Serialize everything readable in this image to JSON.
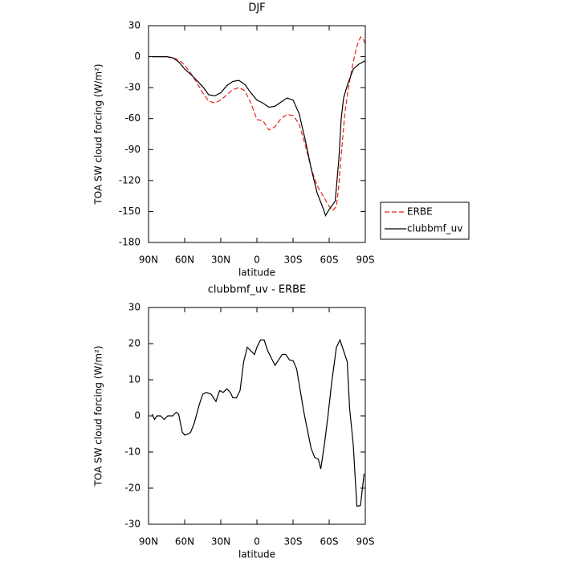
{
  "chart_data": [
    {
      "type": "line",
      "title": "DJF",
      "xlabel": "latitude",
      "ylabel": "TOA SW cloud forcing (W/m²)",
      "xlim": [
        90,
        -90
      ],
      "xticks": [
        {
          "value": 90,
          "label": "90N"
        },
        {
          "value": 60,
          "label": "60N"
        },
        {
          "value": 30,
          "label": "30N"
        },
        0,
        {
          "value": -30,
          "label": "30S"
        },
        {
          "value": -60,
          "label": "60S"
        },
        {
          "value": -90,
          "label": "90S"
        }
      ],
      "ylim": [
        -180,
        30
      ],
      "yticks": [
        30,
        0,
        -30,
        -60,
        -90,
        -120,
        -150,
        -180
      ],
      "legend": "outside-right",
      "series": [
        {
          "name": "ERBE",
          "color": "#e8201c",
          "linestyle": "dashed",
          "x": [
            87,
            80,
            75,
            70,
            65,
            60,
            55,
            50,
            45,
            40,
            35,
            30,
            25,
            20,
            15,
            10,
            5,
            0,
            -5,
            -10,
            -15,
            -20,
            -25,
            -30,
            -35,
            -40,
            -45,
            -50,
            -55,
            -60,
            -63,
            -66,
            -68,
            -70,
            -73,
            -76,
            -80,
            -83,
            -86,
            -88,
            -90
          ],
          "values": [
            0,
            0,
            0,
            -1,
            -3,
            -8,
            -16,
            -25,
            -35,
            -43,
            -45,
            -42,
            -37,
            -32,
            -30,
            -33,
            -45,
            -61,
            -62,
            -71,
            -68,
            -60,
            -56,
            -57,
            -65,
            -85,
            -108,
            -125,
            -135,
            -145,
            -149,
            -145,
            -125,
            -95,
            -55,
            -30,
            -5,
            10,
            19,
            18,
            12
          ]
        },
        {
          "name": "clubbmf_uv",
          "color": "#000000",
          "linestyle": "solid",
          "x": [
            87,
            80,
            75,
            70,
            65,
            60,
            55,
            50,
            45,
            40,
            35,
            30,
            25,
            20,
            15,
            10,
            5,
            0,
            -5,
            -10,
            -15,
            -20,
            -25,
            -30,
            -35,
            -40,
            -45,
            -50,
            -55,
            -57,
            -60,
            -65,
            -68,
            -70,
            -72,
            -75,
            -80,
            -85,
            -90
          ],
          "values": [
            0,
            0,
            0,
            -1,
            -5,
            -12,
            -17,
            -23,
            -29,
            -37,
            -38,
            -35,
            -28,
            -24,
            -23,
            -27,
            -35,
            -42,
            -45,
            -49,
            -48,
            -44,
            -40,
            -42,
            -55,
            -80,
            -108,
            -132,
            -147,
            -154,
            -148,
            -140,
            -100,
            -60,
            -40,
            -28,
            -12,
            -7,
            -4
          ]
        }
      ]
    },
    {
      "type": "line",
      "title": "clubbmf_uv - ERBE",
      "xlabel": "latitude",
      "ylabel": "TOA SW cloud forcing (W/m²)",
      "xlim": [
        90,
        -90
      ],
      "xticks": [
        {
          "value": 90,
          "label": "90N"
        },
        {
          "value": 60,
          "label": "60N"
        },
        {
          "value": 30,
          "label": "30N"
        },
        0,
        {
          "value": -30,
          "label": "30S"
        },
        {
          "value": -60,
          "label": "60S"
        },
        {
          "value": -90,
          "label": "90S"
        }
      ],
      "ylim": [
        -30,
        30
      ],
      "yticks": [
        30,
        20,
        10,
        0,
        -10,
        -20,
        -30
      ],
      "series": [
        {
          "color": "#000000",
          "linestyle": "solid",
          "x": [
            87,
            85,
            83,
            80,
            77,
            74,
            70,
            67,
            65,
            62,
            60,
            57,
            55,
            52,
            48,
            45,
            42,
            38,
            34,
            31,
            28,
            25,
            22,
            20,
            17,
            14,
            11,
            8,
            5,
            2,
            0,
            -3,
            -6,
            -9,
            -12,
            -15,
            -18,
            -21,
            -24,
            -27,
            -30,
            -33,
            -36,
            -39,
            -42,
            -45,
            -48,
            -51,
            -53,
            -56,
            -59,
            -62,
            -66,
            -69,
            -72,
            -75,
            -77,
            -80,
            -83,
            -86,
            -89
          ],
          "values": [
            0.5,
            -1,
            0,
            0,
            -1,
            0,
            0,
            1,
            0.5,
            -4.5,
            -5.3,
            -5,
            -4.5,
            -2,
            3,
            6,
            6.5,
            6,
            4,
            7,
            6.5,
            7.5,
            6.5,
            5,
            5,
            7,
            15,
            19,
            18,
            17,
            19,
            21,
            21,
            18,
            16,
            14,
            15.5,
            17,
            17,
            15.5,
            15.3,
            13,
            7,
            1,
            -4,
            -9,
            -11.5,
            -12,
            -14.7,
            -8,
            0,
            9,
            19,
            21,
            18,
            15,
            2,
            -8,
            -25,
            -24.8,
            -16
          ]
        }
      ]
    }
  ]
}
